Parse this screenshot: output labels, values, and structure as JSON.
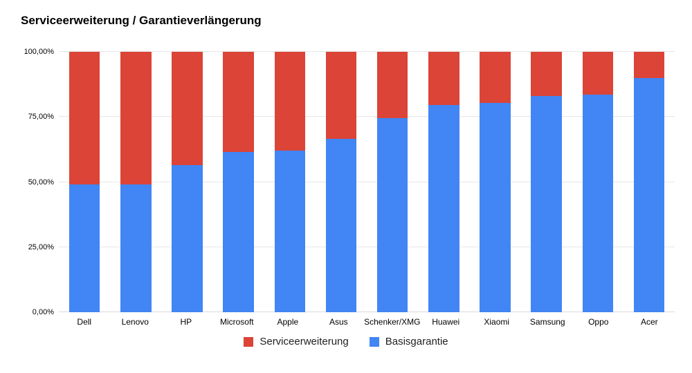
{
  "page": {
    "background": "#ffffff"
  },
  "chart_data": {
    "type": "bar",
    "stacked": true,
    "stacked_percent": true,
    "title": "Serviceerweiterung / Garantieverlängerung",
    "categories": [
      "Dell",
      "Lenovo",
      "HP",
      "Microsoft",
      "Apple",
      "Asus",
      "Schenker/XMG",
      "Huawei",
      "Xiaomi",
      "Samsung",
      "Oppo",
      "Acer"
    ],
    "series": [
      {
        "name": "Serviceerweiterung",
        "color": "#db4437",
        "values": [
          51,
          51,
          43.5,
          38.5,
          38,
          33.5,
          25.5,
          20.5,
          19.5,
          17,
          16.5,
          10
        ]
      },
      {
        "name": "Basisgarantie",
        "color": "#4285f4",
        "values": [
          49,
          49,
          56.5,
          61.5,
          62,
          66.5,
          74.5,
          79.5,
          80.5,
          83,
          83.5,
          90
        ]
      }
    ],
    "ylim": [
      0,
      100
    ],
    "yticks": [
      {
        "value": 0,
        "label": "0,00%"
      },
      {
        "value": 25,
        "label": "25,00%"
      },
      {
        "value": 50,
        "label": "50,00%"
      },
      {
        "value": 75,
        "label": "75,00%"
      },
      {
        "value": 100,
        "label": "100,00%"
      }
    ],
    "grid": "horizontal",
    "legend_position": "bottom",
    "colors": {
      "grid": "#e6e6e6",
      "axis_text": "#000000",
      "title_text": "#000000"
    }
  }
}
